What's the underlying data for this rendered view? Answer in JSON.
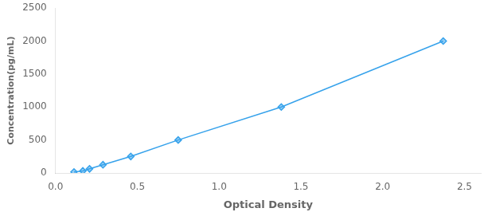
{
  "chart_data": {
    "type": "line",
    "x": [
      0.113,
      0.167,
      0.208,
      0.29,
      0.46,
      0.75,
      1.38,
      2.37
    ],
    "values": [
      15.6,
      31.25,
      62.5,
      125,
      250,
      500,
      1000,
      2000
    ],
    "xlabel": "Optical Density",
    "ylabel": "Concentration(pg/mL)",
    "xlim": [
      0,
      2.6
    ],
    "ylim": [
      0,
      2500
    ],
    "xticks": [
      {
        "value": 0,
        "label": "0.0"
      },
      {
        "value": 0.5,
        "label": "0.5"
      },
      {
        "value": 1,
        "label": "1.0"
      },
      {
        "value": 1.5,
        "label": "1.5"
      },
      {
        "value": 2,
        "label": "2.0"
      },
      {
        "value": 2.5,
        "label": "2.5"
      }
    ],
    "yticks": [
      0,
      500,
      1000,
      1500,
      2000,
      2500
    ],
    "grid": false,
    "marker": "diamond"
  }
}
